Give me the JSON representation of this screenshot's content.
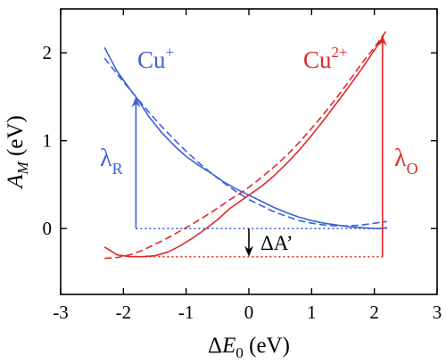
{
  "chart_data": {
    "type": "line",
    "xlabel": {
      "delta": "Δ",
      "var": "E",
      "sub": "0",
      "unit": " (eV)"
    },
    "ylabel": {
      "var": "A",
      "sub": "M",
      "unit": " (eV)"
    },
    "xlim": [
      -3,
      3
    ],
    "ylim": [
      -0.75,
      2.5
    ],
    "xticks": [
      -3,
      -2,
      -1,
      0,
      1,
      2,
      3
    ],
    "yticks": [
      0,
      1,
      2
    ],
    "xtick_labels": [
      "-3",
      "-2",
      "-1",
      "0",
      "1",
      "2",
      "3"
    ],
    "ytick_labels": [
      "0",
      "1",
      "2"
    ],
    "grid": false,
    "colors": {
      "cu_plus": "#3a63d8",
      "cu_2plus": "#e02a2a",
      "axes": "#000000"
    },
    "series": [
      {
        "name": "Cu+",
        "color": "#3a63d8",
        "style": "solid",
        "x": [
          -2.3,
          -2.1,
          -1.9,
          -1.8,
          -1.6,
          -1.4,
          -1.2,
          -1.0,
          -0.8,
          -0.6,
          -0.4,
          -0.2,
          0.0,
          0.2,
          0.4,
          0.6,
          0.8,
          1.0,
          1.2,
          1.4,
          1.6,
          1.8,
          2.0,
          2.1,
          2.2
        ],
        "y": [
          2.06,
          1.79,
          1.59,
          1.5,
          1.28,
          1.1,
          0.95,
          0.82,
          0.72,
          0.63,
          0.53,
          0.45,
          0.38,
          0.31,
          0.24,
          0.18,
          0.13,
          0.09,
          0.06,
          0.04,
          0.02,
          0.01,
          0.0,
          0.0,
          0.01
        ]
      },
      {
        "name": "Cu+ fit",
        "color": "#3a63d8",
        "style": "dashed",
        "x": [
          -2.3,
          -2.0,
          -1.8,
          -1.6,
          -1.4,
          -1.2,
          -1.0,
          -0.8,
          -0.6,
          -0.4,
          -0.2,
          0.0,
          0.2,
          0.4,
          0.6,
          0.8,
          1.0,
          1.2,
          1.4,
          1.6,
          1.8,
          2.0,
          2.2
        ],
        "y": [
          1.94,
          1.67,
          1.5,
          1.33,
          1.17,
          1.02,
          0.88,
          0.75,
          0.63,
          0.52,
          0.42,
          0.33,
          0.26,
          0.19,
          0.14,
          0.09,
          0.06,
          0.04,
          0.03,
          0.03,
          0.04,
          0.06,
          0.08
        ]
      },
      {
        "name": "Cu2+",
        "color": "#e02a2a",
        "style": "solid",
        "x": [
          -2.3,
          -2.1,
          -1.9,
          -1.7,
          -1.5,
          -1.3,
          -1.1,
          -0.9,
          -0.7,
          -0.5,
          -0.3,
          -0.1,
          0.0,
          0.2,
          0.4,
          0.6,
          0.8,
          1.0,
          1.2,
          1.4,
          1.6,
          1.8,
          2.0,
          2.1,
          2.15
        ],
        "y": [
          -0.21,
          -0.3,
          -0.32,
          -0.32,
          -0.31,
          -0.27,
          -0.2,
          -0.11,
          -0.01,
          0.1,
          0.23,
          0.33,
          0.38,
          0.48,
          0.6,
          0.74,
          0.89,
          1.06,
          1.24,
          1.43,
          1.62,
          1.82,
          2.03,
          2.14,
          2.2
        ]
      },
      {
        "name": "Cu2+ fit",
        "color": "#e02a2a",
        "style": "dashed",
        "x": [
          -2.3,
          -2.1,
          -1.9,
          -1.7,
          -1.5,
          -1.3,
          -1.1,
          -0.9,
          -0.7,
          -0.5,
          -0.3,
          -0.1,
          0.0,
          0.2,
          0.4,
          0.6,
          0.8,
          1.0,
          1.2,
          1.4,
          1.6,
          1.8,
          2.0,
          2.2
        ],
        "y": [
          -0.34,
          -0.33,
          -0.3,
          -0.25,
          -0.18,
          -0.11,
          -0.03,
          0.05,
          0.14,
          0.23,
          0.33,
          0.42,
          0.47,
          0.58,
          0.7,
          0.83,
          0.98,
          1.14,
          1.31,
          1.49,
          1.68,
          1.88,
          2.06,
          2.26
        ]
      }
    ],
    "reference_lines": [
      {
        "name": "blue-dotted-reference",
        "color": "#3a63d8",
        "style": "dotted",
        "x": [
          -1.8,
          2.2
        ],
        "y": [
          0.0,
          0.0
        ]
      },
      {
        "name": "red-dotted-reference",
        "color": "#e02a2a",
        "style": "dotted",
        "x": [
          -1.8,
          2.15
        ],
        "y": [
          -0.32,
          -0.32
        ]
      }
    ],
    "arrows": [
      {
        "name": "lambda-r-arrow",
        "color": "#3a63d8",
        "from": [
          -1.8,
          0.0
        ],
        "to": [
          -1.8,
          1.5
        ]
      },
      {
        "name": "lambda-o-arrow",
        "color": "#e02a2a",
        "from": [
          2.13,
          -0.32
        ],
        "to": [
          2.13,
          2.2
        ]
      },
      {
        "name": "delta-a-prime-arrow",
        "color": "#000000",
        "from": [
          0.0,
          0.0
        ],
        "to": [
          0.0,
          -0.32
        ]
      }
    ],
    "annotations": {
      "cu_plus": {
        "base": "Cu",
        "sup": "+",
        "color": "#3a63d8"
      },
      "cu_2plus": {
        "base": "Cu",
        "sup": "2+",
        "color": "#e02a2a"
      },
      "lambda_r": {
        "base": "λ",
        "sub": "R",
        "color": "#3a63d8"
      },
      "lambda_o": {
        "base": "λ",
        "sub": "O",
        "color": "#e02a2a"
      },
      "delta_a_prime": {
        "text": "ΔA’",
        "color": "#000000"
      }
    }
  }
}
